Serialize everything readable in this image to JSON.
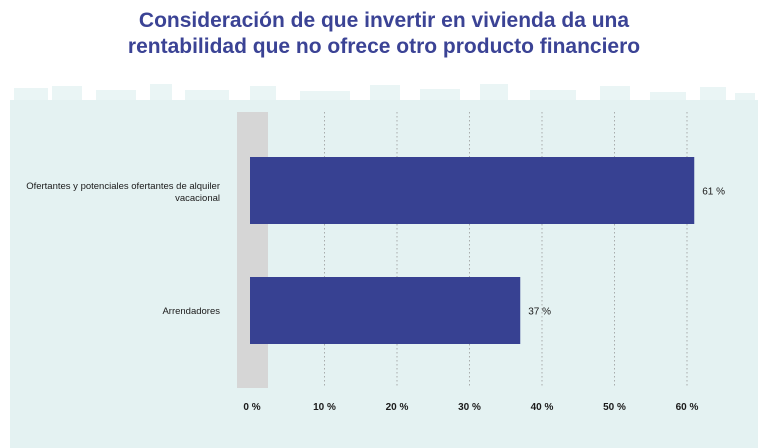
{
  "title_line1": "Consideración de que invertir en vivienda da una",
  "title_line2": "rentabilidad que no ofrece otro producto financiero",
  "colors": {
    "title": "#3b4395",
    "bar": "#374192",
    "panel": "#e4f2f2",
    "skyline": "#eaf5f5",
    "highlight_band": "#d6d6d6",
    "grid": "#9a9a9a"
  },
  "chart_data": {
    "type": "bar",
    "orientation": "horizontal",
    "title": "Consideración de que invertir en vivienda da una rentabilidad que no ofrece otro producto financiero",
    "categories": [
      "Ofertantes y potenciales ofertantes de alquiler vacacional",
      "Arrendadores"
    ],
    "values": [
      61,
      37
    ],
    "value_labels": [
      "61 %",
      "37 %"
    ],
    "xlim": [
      0,
      60
    ],
    "xticks": [
      0,
      10,
      20,
      30,
      40,
      50,
      60
    ],
    "xtick_labels": [
      "0 %",
      "10 %",
      "20 %",
      "30 %",
      "40 %",
      "50 %",
      "60 %"
    ],
    "grid": "vertical dotted",
    "legend": "none"
  }
}
